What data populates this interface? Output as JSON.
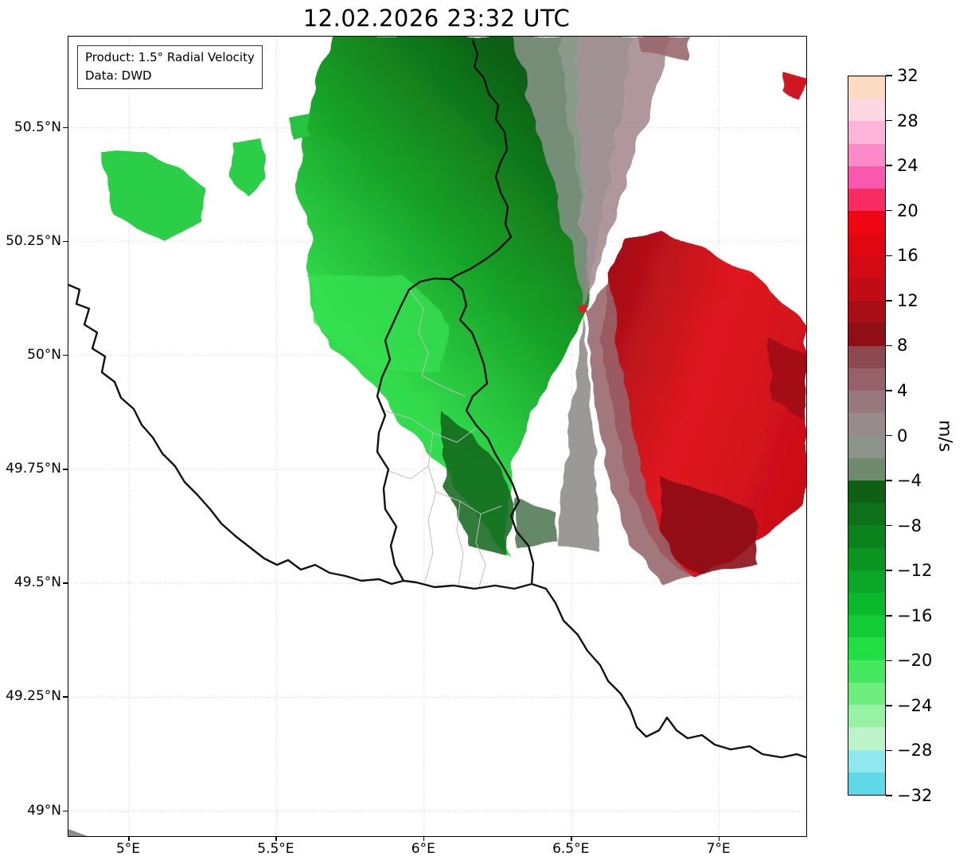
{
  "title": "12.02.2026 23:32 UTC",
  "info_box": {
    "product": "Product: 1.5° Radial Velocity",
    "source": "Data: DWD"
  },
  "map": {
    "extent": {
      "lon_min": 4.795,
      "lon_max": 7.295,
      "lat_min": 48.945,
      "lat_max": 50.7
    },
    "x_axis": {
      "ticks": [
        {
          "value": 5,
          "label": "5°E"
        },
        {
          "value": 5.5,
          "label": "5.5°E"
        },
        {
          "value": 6,
          "label": "6°E"
        },
        {
          "value": 6.5,
          "label": "6.5°E"
        },
        {
          "value": 7,
          "label": "7°E"
        }
      ]
    },
    "y_axis": {
      "ticks": [
        {
          "value": 49,
          "label": "49°N"
        },
        {
          "value": 49.25,
          "label": "49.25°N"
        },
        {
          "value": 49.5,
          "label": "49.5°N"
        },
        {
          "value": 49.75,
          "label": "49.75°N"
        },
        {
          "value": 50,
          "label": "50°N"
        },
        {
          "value": 50.25,
          "label": "50.25°N"
        },
        {
          "value": 50.5,
          "label": "50.5°N"
        }
      ]
    }
  },
  "colorbar": {
    "unit": "m/s",
    "min": -32,
    "max": 32,
    "tick_values": [
      32,
      28,
      24,
      20,
      16,
      12,
      8,
      4,
      0,
      -4,
      -8,
      -12,
      -16,
      -20,
      -24,
      -28,
      -32
    ],
    "band_colors_top_to_bottom": [
      "#fbdcc1",
      "#fdd7e3",
      "#fcb4d8",
      "#fb8ac7",
      "#f958ae",
      "#f92b63",
      "#ee0712",
      "#e00711",
      "#d20a13",
      "#c10c15",
      "#a90d15",
      "#900e15",
      "#8c4950",
      "#966168",
      "#97787c",
      "#988b8c",
      "#8c938b",
      "#6f8a6d",
      "#0f5f14",
      "#0e7018",
      "#0c821c",
      "#0a9420",
      "#0aa625",
      "#09b92a",
      "#12cc35",
      "#1fdf42",
      "#45e85f",
      "#6fee80",
      "#97f2a3",
      "#bcf4c9",
      "#8fe7f0",
      "#5fd8e8"
    ]
  }
}
